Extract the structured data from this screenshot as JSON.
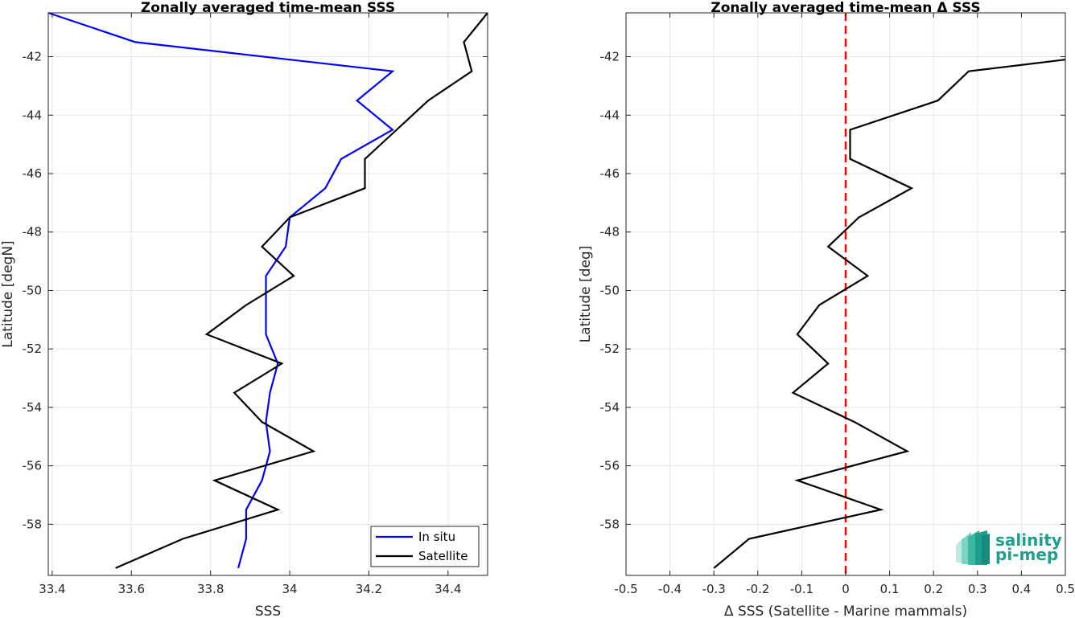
{
  "chart_data": [
    {
      "type": "line",
      "title": "Zonally averaged time-mean SSS",
      "xlabel": "SSS",
      "ylabel": "Latitude [degN]",
      "xlim": [
        33.39,
        34.5
      ],
      "ylim": [
        -59.75,
        -40.5
      ],
      "xticks": [
        33.4,
        33.6,
        33.8,
        34,
        34.2,
        34.4
      ],
      "xtick_labels": [
        "33.4",
        "33.6",
        "33.8",
        "34",
        "34.2",
        "34.4"
      ],
      "yticks": [
        -42,
        -44,
        -46,
        -48,
        -50,
        -52,
        -54,
        -56,
        -58
      ],
      "ytick_labels": [
        "-42",
        "-44",
        "-46",
        "-48",
        "-50",
        "-52",
        "-54",
        "-56",
        "-58"
      ],
      "grid": true,
      "legend_position": "bottom-right",
      "series": [
        {
          "name": "In situ",
          "color": "#0000ff",
          "x": [
            33.39,
            33.61,
            34.26,
            34.17,
            34.26,
            34.13,
            34.09,
            34.0,
            33.99,
            33.94,
            33.94,
            33.97,
            33.95,
            33.94,
            33.95,
            33.93,
            33.89,
            33.89,
            33.87
          ],
          "y": [
            -40.5,
            -41.5,
            -42.5,
            -43.5,
            -44.5,
            -45.5,
            -46.5,
            -47.5,
            -48.5,
            -49.5,
            -51.5,
            -52.5,
            -53.5,
            -54.5,
            -55.5,
            -56.5,
            -57.5,
            -58.5,
            -59.5
          ]
        },
        {
          "name": "Satellite",
          "color": "#000000",
          "x": [
            34.5,
            34.44,
            34.46,
            34.35,
            34.27,
            34.19,
            34.19,
            34.0,
            33.93,
            34.01,
            33.89,
            33.79,
            33.98,
            33.86,
            33.93,
            34.06,
            33.81,
            33.97,
            33.73,
            33.56
          ],
          "y": [
            -40.5,
            -41.5,
            -42.5,
            -43.5,
            -44.5,
            -45.5,
            -46.5,
            -47.5,
            -48.5,
            -49.5,
            -50.5,
            -51.5,
            -52.5,
            -53.5,
            -54.5,
            -55.5,
            -56.5,
            -57.5,
            -58.5,
            -59.5
          ]
        }
      ]
    },
    {
      "type": "line",
      "title": "Zonally averaged time-mean Δ SSS",
      "xlabel": "Δ SSS (Satellite - Marine mammals)",
      "ylabel": "Latitude [deg]",
      "xlim": [
        -0.5,
        0.5
      ],
      "ylim": [
        -59.75,
        -40.5
      ],
      "xticks": [
        -0.5,
        -0.4,
        -0.3,
        -0.2,
        -0.1,
        0,
        0.1,
        0.2,
        0.3,
        0.4,
        0.5
      ],
      "xtick_labels": [
        "-0.5",
        "-0.4",
        "-0.3",
        "-0.2",
        "-0.1",
        "0",
        "0.1",
        "0.2",
        "0.3",
        "0.4",
        "0.5"
      ],
      "yticks": [
        -42,
        -44,
        -46,
        -48,
        -50,
        -52,
        -54,
        -56,
        -58
      ],
      "ytick_labels": [
        "-42",
        "-44",
        "-46",
        "-48",
        "-50",
        "-52",
        "-54",
        "-56",
        "-58"
      ],
      "grid": true,
      "reference_line": {
        "x": 0,
        "color": "#ff0000",
        "style": "dashed"
      },
      "series": [
        {
          "color": "#000000",
          "x": [
            0.5,
            0.28,
            0.21,
            0.01,
            0.01,
            0.15,
            0.03,
            -0.04,
            0.05,
            -0.06,
            -0.11,
            -0.04,
            -0.12,
            0.02,
            0.14,
            -0.11,
            0.08,
            -0.22,
            -0.3
          ],
          "y": [
            -42.1,
            -42.5,
            -43.5,
            -44.5,
            -45.5,
            -46.5,
            -47.5,
            -48.5,
            -49.5,
            -50.5,
            -51.5,
            -52.5,
            -53.5,
            -54.5,
            -55.5,
            -56.5,
            -57.5,
            -58.5,
            -59.5
          ]
        }
      ]
    }
  ],
  "logo": {
    "line1": "salinity",
    "line2": "pi-mep",
    "color": "#1f9e8e"
  }
}
